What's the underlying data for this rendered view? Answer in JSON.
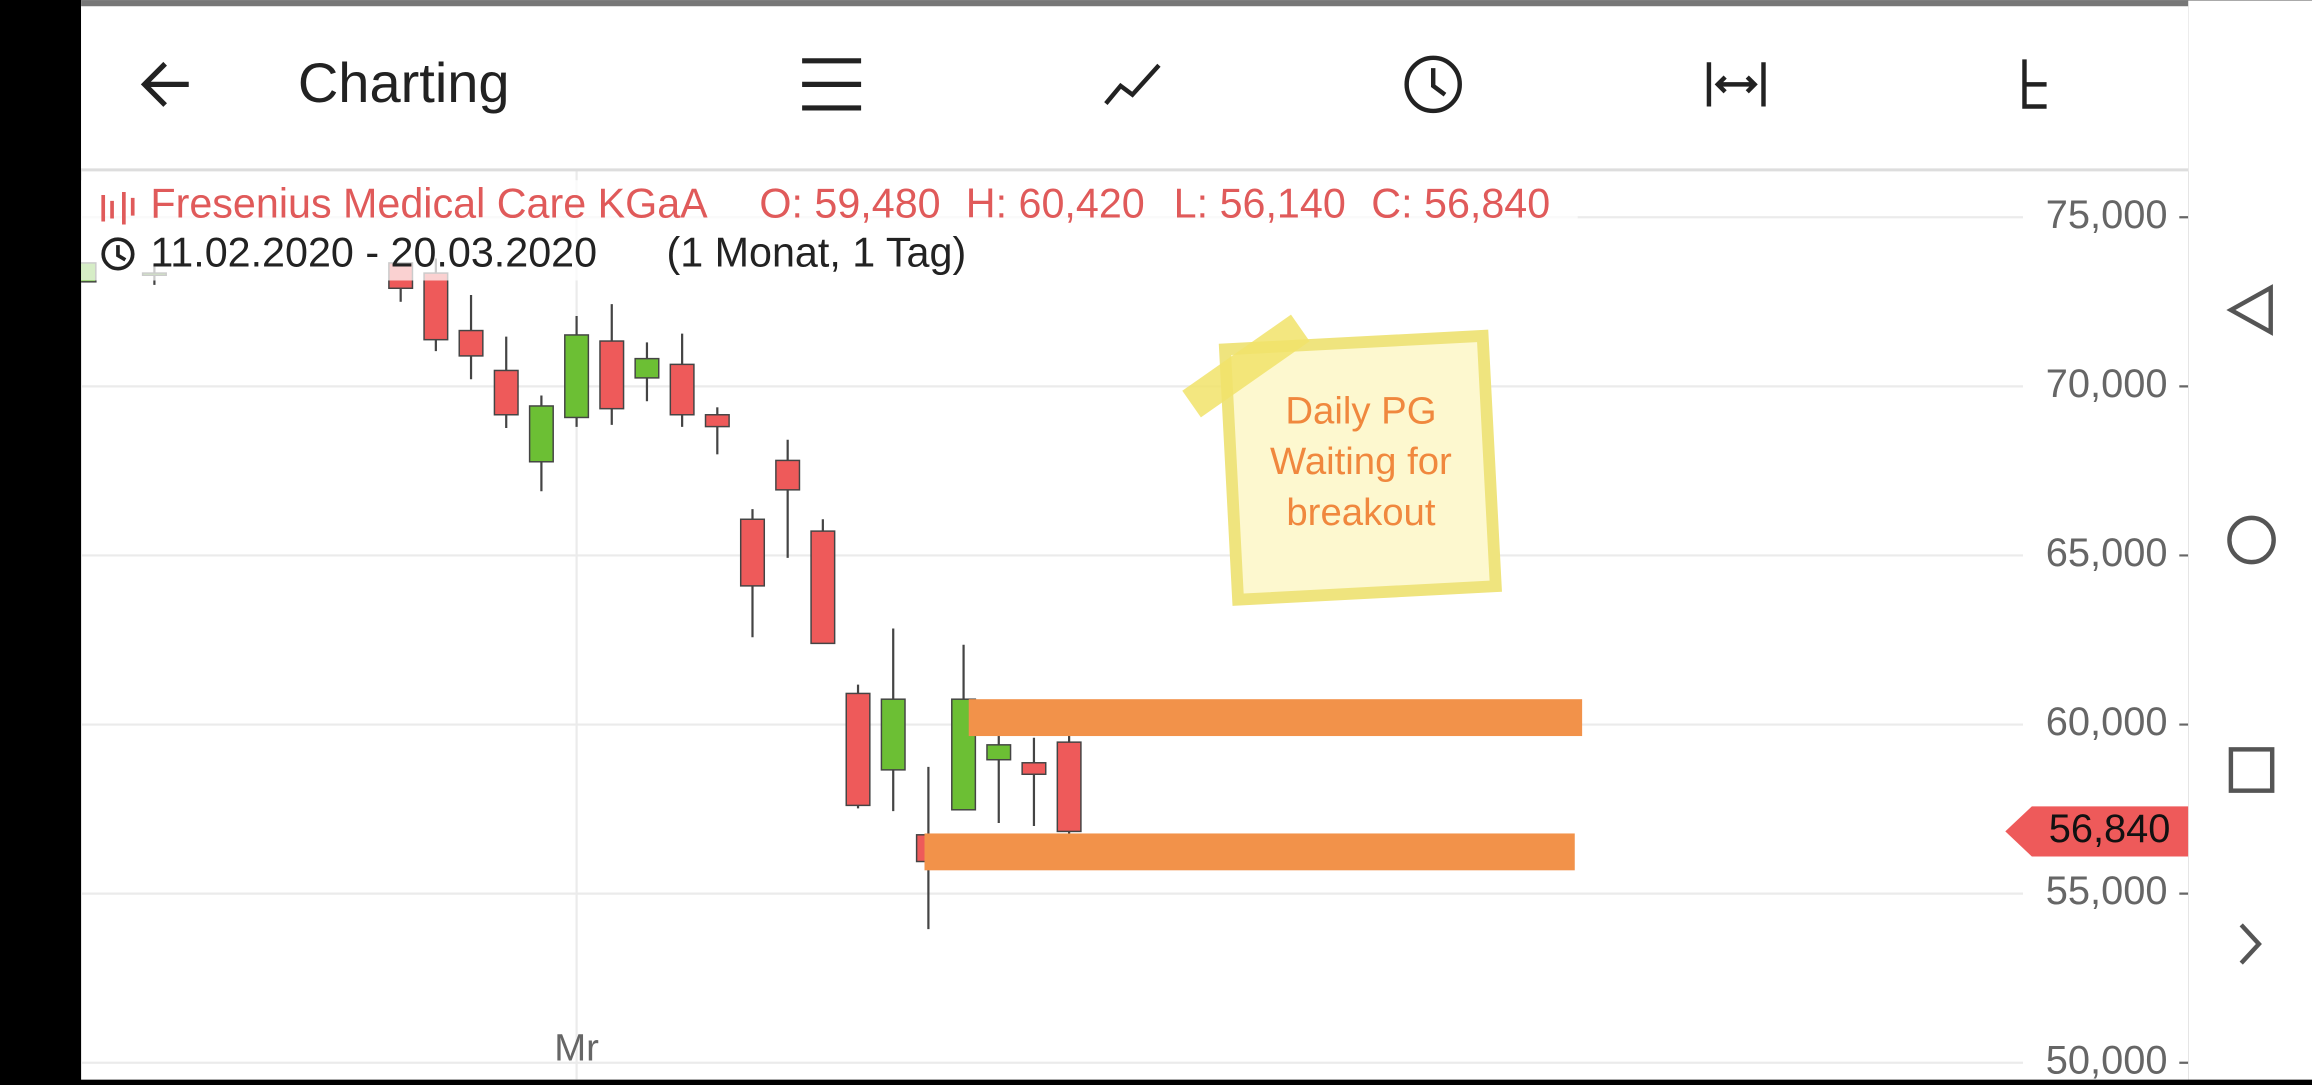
{
  "app_bar": {
    "title": "Charting"
  },
  "chart_data": {
    "type": "candlestick",
    "title": "Fresenius Medical Care KGaA",
    "ohlc_labels": [
      "O: 59,480",
      "H: 60,420",
      "L: 56,140",
      "C: 56,840"
    ],
    "date_range": "11.02.2020 - 20.03.2020",
    "period": "(1 Monat, 1 Tag)",
    "categories": [
      null,
      null,
      null,
      null,
      null,
      null,
      null,
      null,
      null,
      null,
      null,
      null,
      null,
      null,
      "Mr",
      null,
      null,
      null,
      null,
      null,
      null,
      null,
      null,
      null,
      null,
      null,
      null,
      null,
      null
    ],
    "open": [
      73090,
      null,
      73350,
      null,
      null,
      null,
      null,
      null,
      null,
      73650,
      73350,
      71650,
      70470,
      67770,
      69080,
      71340,
      70250,
      70650,
      69160,
      66070,
      67810,
      65720,
      60920,
      58660,
      56740,
      57480,
      58960,
      58870,
      59480
    ],
    "high": [
      73650,
      null,
      73600,
      null,
      null,
      null,
      null,
      null,
      null,
      73650,
      73780,
      72700,
      71470,
      69730,
      72080,
      72430,
      71300,
      71560,
      69380,
      66370,
      68420,
      66070,
      61180,
      62840,
      58750,
      62360,
      60050,
      59610,
      60420
    ],
    "low": [
      73090,
      null,
      73000,
      null,
      null,
      null,
      null,
      null,
      null,
      72500,
      71040,
      70210,
      68770,
      66900,
      68800,
      68860,
      69560,
      68800,
      67990,
      62580,
      64930,
      62400,
      57520,
      57440,
      53950,
      57480,
      57090,
      57000,
      56140
    ],
    "close": [
      73650,
      null,
      73350,
      null,
      null,
      null,
      null,
      null,
      null,
      72900,
      71380,
      70900,
      69160,
      69420,
      71520,
      69340,
      70820,
      69160,
      68810,
      64100,
      66940,
      62400,
      57610,
      60750,
      55950,
      60750,
      59400,
      58530,
      56840
    ],
    "up_color": "#6cbf34",
    "down_color": "#ee5a5a",
    "ylim": [
      49500,
      76400
    ],
    "yticks": [
      {
        "value": 50000,
        "label": "50,000"
      },
      {
        "value": 55000,
        "label": "55,000"
      },
      {
        "value": 60000,
        "label": "60,000"
      },
      {
        "value": 65000,
        "label": "65,000"
      },
      {
        "value": 70000,
        "label": "70,000"
      },
      {
        "value": 75000,
        "label": "75,000"
      }
    ],
    "grid": true,
    "last_price": {
      "value": 56840,
      "label": "56,840"
    },
    "zones": [
      {
        "from": 59660,
        "to": 60750,
        "color": "#f2924a"
      },
      {
        "from": 55690,
        "to": 56780,
        "color": "#f2924a"
      }
    ],
    "note": {
      "lines": [
        "Daily PG",
        "Waiting for",
        "breakout"
      ]
    }
  }
}
